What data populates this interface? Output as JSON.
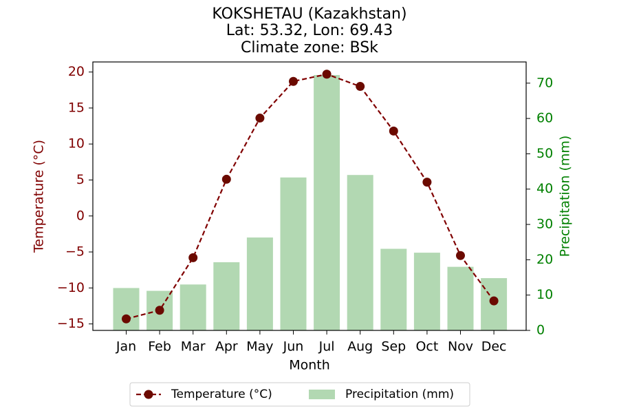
{
  "colors": {
    "temperature": "#800000",
    "temperature_marker": "#6b0a00",
    "precipitation_bar": "#b2d8b2",
    "precipitation_axis": "#008000",
    "axis": "#000000"
  },
  "chart_data": {
    "type": "bar+line",
    "title_lines": [
      "KOKSHETAU (Kazakhstan)",
      "Lat: 53.32, Lon: 69.43",
      "Climate zone: BSk"
    ],
    "xlabel": "Month",
    "ylabel_left": "Temperature (°C)",
    "ylabel_right": "Precipitation (mm)",
    "categories": [
      "Jan",
      "Feb",
      "Mar",
      "Apr",
      "May",
      "Jun",
      "Jul",
      "Aug",
      "Sep",
      "Oct",
      "Nov",
      "Dec"
    ],
    "temperature": {
      "name": "Temperature (°C)",
      "values": [
        -14.3,
        -13.1,
        -5.8,
        5.1,
        13.6,
        18.7,
        19.7,
        18.0,
        11.8,
        4.7,
        -5.5,
        -11.8
      ],
      "ylim": [
        -15.9,
        21.4
      ],
      "ticks": [
        -15,
        -10,
        -5,
        0,
        5,
        10,
        15,
        20
      ],
      "tick_labels": [
        "−15",
        "−10",
        "−5",
        "0",
        "5",
        "10",
        "15",
        "20"
      ]
    },
    "precipitation": {
      "name": "Precipitation (mm)",
      "values": [
        12,
        11.2,
        13,
        19.3,
        26.3,
        43.3,
        72.3,
        44,
        23.1,
        22,
        18,
        14.8
      ],
      "ylim": [
        0,
        76
      ],
      "ticks": [
        0,
        10,
        20,
        30,
        40,
        50,
        60,
        70
      ],
      "tick_labels": [
        "0",
        "10",
        "20",
        "30",
        "40",
        "50",
        "60",
        "70"
      ]
    },
    "legend": {
      "position": "bottom-center",
      "entries": [
        "Temperature (°C)",
        "Precipitation (mm)"
      ]
    },
    "grid": false
  }
}
